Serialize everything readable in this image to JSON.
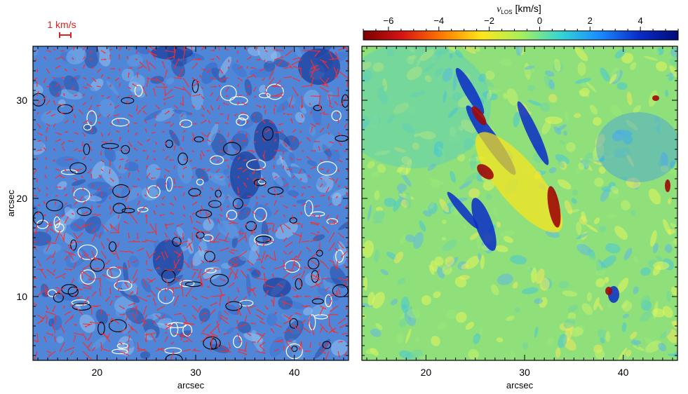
{
  "chart_data": [
    {
      "type": "heatmap",
      "panel": "left",
      "title": "",
      "xlabel": "arcsec",
      "ylabel": "arcsec",
      "xlim": [
        13.5,
        45.5
      ],
      "ylim": [
        3.5,
        35.5
      ],
      "x_ticks": [
        20,
        30,
        40
      ],
      "y_ticks": [
        10,
        20,
        30
      ],
      "overlay": "horizontal flow vectors (red arrows) with white and black contours",
      "scale_label": "1 km/s",
      "colors": {
        "arrows": "#ff2a2a",
        "contour_white": "#ffffff",
        "contour_black": "#000000",
        "map_low": "#1f2f8f",
        "map_high": "#cfe6ff"
      }
    },
    {
      "type": "heatmap",
      "panel": "right",
      "title": "",
      "xlabel": "arcsec",
      "ylabel": "",
      "xlim": [
        13.5,
        45.5
      ],
      "ylim": [
        3.5,
        35.5
      ],
      "x_ticks": [
        20,
        30,
        40
      ],
      "y_ticks": [
        10,
        20,
        30
      ],
      "colorbar": {
        "label_symbol": "v",
        "label_subscript": "LOS",
        "label_unit": "[km/s]",
        "range": [
          -7,
          5.5
        ],
        "ticks": [
          -6,
          -4,
          -2,
          0,
          2,
          4
        ],
        "tick_labels": [
          "−6",
          "−4",
          "−2",
          "0",
          "2",
          "4"
        ],
        "colormap": [
          "#7a0000",
          "#d81414",
          "#ff7a00",
          "#ffe61a",
          "#a8f05a",
          "#36d6d2",
          "#1a8cff",
          "#0a2cc8",
          "#000a78"
        ]
      }
    }
  ]
}
